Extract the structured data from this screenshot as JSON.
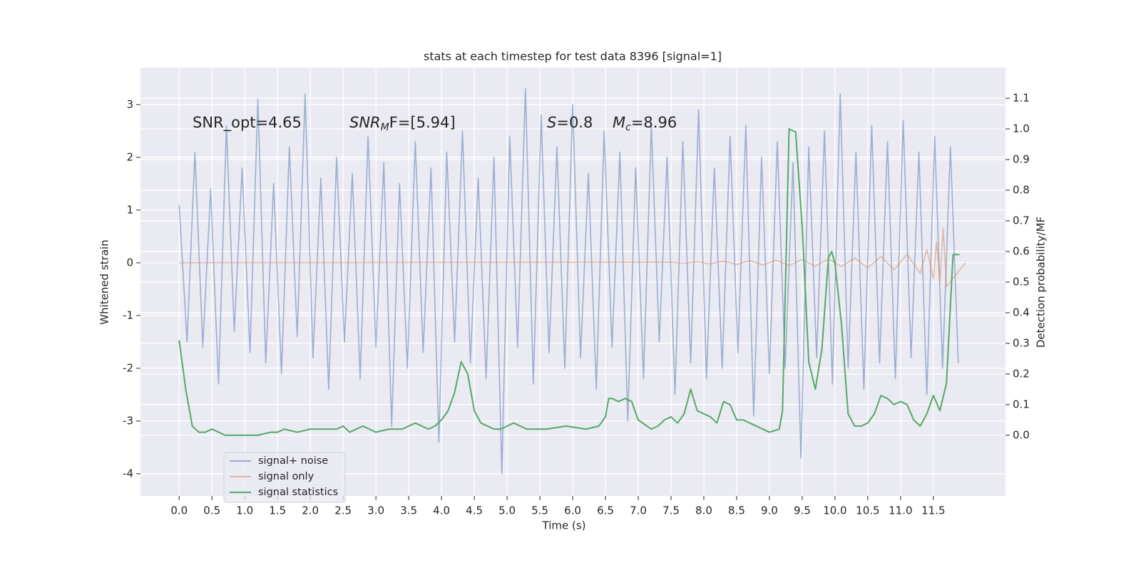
{
  "chart_data": {
    "type": "line",
    "title": "stats at each timestep for test data 8396 [signal=1]",
    "xlabel": "Time (s)",
    "ylabel": "Whitened strain",
    "y2label": "Detection probability/MF",
    "xlim": [
      -0.59,
      12.6
    ],
    "ylim": [
      -4.42,
      3.7
    ],
    "y2lim": [
      -0.198,
      1.2
    ],
    "xticks": [
      {
        "value": 0,
        "label": "0.0"
      },
      {
        "value": 0.5,
        "label": "0.5"
      },
      {
        "value": 1,
        "label": "1.0"
      },
      {
        "value": 1.5,
        "label": "1.5"
      },
      {
        "value": 2,
        "label": "2.0"
      },
      {
        "value": 2.5,
        "label": "2.5"
      },
      {
        "value": 3,
        "label": "3.0"
      },
      {
        "value": 3.5,
        "label": "3.5"
      },
      {
        "value": 4,
        "label": "4.0"
      },
      {
        "value": 4.5,
        "label": "4.5"
      },
      {
        "value": 5,
        "label": "5.0"
      },
      {
        "value": 5.5,
        "label": "5.5"
      },
      {
        "value": 6,
        "label": "6.0"
      },
      {
        "value": 6.5,
        "label": "6.5"
      },
      {
        "value": 7,
        "label": "7.0"
      },
      {
        "value": 7.5,
        "label": "7.5"
      },
      {
        "value": 8,
        "label": "8.0"
      },
      {
        "value": 8.5,
        "label": "8.5"
      },
      {
        "value": 9,
        "label": "9.0"
      },
      {
        "value": 9.5,
        "label": "9.5"
      },
      {
        "value": 10,
        "label": "10.0"
      },
      {
        "value": 10.5,
        "label": "10.5"
      },
      {
        "value": 11,
        "label": "11.0"
      },
      {
        "value": 11.5,
        "label": "11.5"
      }
    ],
    "yticks": [
      -4,
      -3,
      -2,
      -1,
      0,
      1,
      2,
      3
    ],
    "y2ticks": [
      {
        "value": 0,
        "label": "0.0"
      },
      {
        "value": 0.1,
        "label": "0.1"
      },
      {
        "value": 0.2,
        "label": "0.2"
      },
      {
        "value": 0.3,
        "label": "0.3"
      },
      {
        "value": 0.4,
        "label": "0.4"
      },
      {
        "value": 0.5,
        "label": "0.5"
      },
      {
        "value": 0.6,
        "label": "0.6"
      },
      {
        "value": 0.7,
        "label": "0.7"
      },
      {
        "value": 0.8,
        "label": "0.8"
      },
      {
        "value": 0.9,
        "label": "0.9"
      },
      {
        "value": 1,
        "label": "1.0"
      },
      {
        "value": 1.1,
        "label": "1.1"
      }
    ],
    "grid": true,
    "legend": "lower left",
    "annotations": [
      {
        "main": "SNR_opt=4.65",
        "italic": false
      },
      {
        "main": "SNR",
        "sub": "M",
        "rest": "F=[5.94]",
        "italic": true
      },
      {
        "main": "S",
        "rest": "=0.8",
        "italic": true
      },
      {
        "main": "M",
        "sub": "c",
        "rest": "=8.96",
        "italic": true
      }
    ],
    "series": [
      {
        "name": "signal+ noise",
        "color": "#4c72b0",
        "opacity": 0.5,
        "axis": "y",
        "x": [
          0,
          0.12,
          0.24,
          0.36,
          0.48,
          0.6,
          0.72,
          0.84,
          0.96,
          1.08,
          1.2,
          1.32,
          1.44,
          1.56,
          1.68,
          1.8,
          1.92,
          2.04,
          2.16,
          2.28,
          2.4,
          2.52,
          2.64,
          2.76,
          2.88,
          3.0,
          3.12,
          3.24,
          3.36,
          3.48,
          3.6,
          3.72,
          3.84,
          3.96,
          4.08,
          4.2,
          4.32,
          4.44,
          4.56,
          4.68,
          4.8,
          4.92,
          5.04,
          5.16,
          5.28,
          5.4,
          5.52,
          5.64,
          5.76,
          5.88,
          6.0,
          6.12,
          6.24,
          6.36,
          6.48,
          6.6,
          6.72,
          6.84,
          6.96,
          7.08,
          7.2,
          7.32,
          7.44,
          7.56,
          7.68,
          7.8,
          7.92,
          8.04,
          8.16,
          8.28,
          8.4,
          8.52,
          8.64,
          8.76,
          8.88,
          9.0,
          9.12,
          9.24,
          9.36,
          9.48,
          9.6,
          9.72,
          9.84,
          9.96,
          10.08,
          10.2,
          10.32,
          10.44,
          10.56,
          10.68,
          10.8,
          10.92,
          11.04,
          11.16,
          11.28,
          11.4,
          11.52,
          11.64,
          11.76,
          11.88
        ],
        "values": [
          1.1,
          -1.5,
          2.1,
          -1.6,
          1.4,
          -2.3,
          2.6,
          -1.3,
          1.8,
          -1.7,
          3.1,
          -1.9,
          1.5,
          -2.1,
          2.2,
          -1.4,
          3.2,
          -1.8,
          1.6,
          -2.4,
          2.0,
          -1.5,
          1.7,
          -2.2,
          2.4,
          -1.6,
          1.9,
          -3.1,
          1.5,
          -2.0,
          2.3,
          -1.7,
          1.8,
          -3.4,
          2.1,
          -1.5,
          2.5,
          -1.9,
          1.6,
          -2.2,
          2.0,
          -4.0,
          2.4,
          -1.6,
          3.3,
          -2.3,
          2.8,
          -1.7,
          2.2,
          -2.0,
          3.0,
          -1.8,
          1.7,
          -2.4,
          2.5,
          -1.6,
          2.1,
          -3.0,
          1.8,
          -2.2,
          2.6,
          -1.5,
          2.0,
          -2.5,
          2.3,
          -1.9,
          2.9,
          -2.2,
          1.8,
          -2.0,
          2.4,
          -1.7,
          2.6,
          -2.9,
          2.0,
          -2.1,
          2.3,
          -2.0,
          1.9,
          -3.7,
          2.2,
          -1.8,
          2.5,
          -2.3,
          3.2,
          -2.0,
          2.1,
          -2.4,
          2.6,
          -1.9,
          2.3,
          -2.2,
          2.7,
          -1.8,
          2.1,
          -2.5,
          2.4,
          -2.0,
          2.2,
          -1.9
        ]
      },
      {
        "name": "signal only",
        "color": "#dd8452",
        "opacity": 0.5,
        "axis": "y",
        "x": [
          0,
          7.5,
          7.7,
          7.9,
          8.1,
          8.3,
          8.5,
          8.7,
          8.9,
          9.1,
          9.3,
          9.5,
          9.7,
          9.9,
          10.1,
          10.3,
          10.5,
          10.7,
          10.9,
          11.1,
          11.3,
          11.4,
          11.5,
          11.55,
          11.6,
          11.65,
          11.7,
          11.99
        ],
        "values": [
          0,
          0.01,
          -0.01,
          0.02,
          -0.02,
          0.03,
          -0.03,
          0.04,
          -0.04,
          0.05,
          -0.05,
          0.06,
          -0.06,
          0.07,
          -0.07,
          0.09,
          -0.1,
          0.12,
          -0.13,
          0.16,
          -0.2,
          0.25,
          -0.3,
          0.4,
          -0.38,
          0.65,
          -0.45,
          0
        ]
      },
      {
        "name": "signal statistics",
        "color": "#55a868",
        "opacity": 1,
        "axis": "y2",
        "x": [
          0,
          0.05,
          0.1,
          0.2,
          0.3,
          0.4,
          0.5,
          0.6,
          0.7,
          0.8,
          1.0,
          1.2,
          1.4,
          1.5,
          1.6,
          1.8,
          2.0,
          2.2,
          2.4,
          2.5,
          2.6,
          2.8,
          3.0,
          3.2,
          3.4,
          3.6,
          3.8,
          3.9,
          4.0,
          4.1,
          4.2,
          4.3,
          4.4,
          4.5,
          4.6,
          4.8,
          4.9,
          5.0,
          5.1,
          5.3,
          5.6,
          5.9,
          6.2,
          6.4,
          6.5,
          6.55,
          6.6,
          6.7,
          6.8,
          6.9,
          7.0,
          7.2,
          7.3,
          7.4,
          7.5,
          7.6,
          7.7,
          7.8,
          7.9,
          8.0,
          8.1,
          8.2,
          8.3,
          8.4,
          8.5,
          8.6,
          8.7,
          9.0,
          9.15,
          9.2,
          9.3,
          9.4,
          9.5,
          9.6,
          9.7,
          9.8,
          9.9,
          9.95,
          10.0,
          10.1,
          10.2,
          10.3,
          10.4,
          10.5,
          10.6,
          10.7,
          10.8,
          10.9,
          11.0,
          11.1,
          11.2,
          11.3,
          11.4,
          11.5,
          11.6,
          11.7,
          11.8,
          11.9
        ],
        "values": [
          0.31,
          0.23,
          0.15,
          0.03,
          0.01,
          0.01,
          0.02,
          0.01,
          0.0,
          0.0,
          0.0,
          0.0,
          0.01,
          0.01,
          0.02,
          0.01,
          0.02,
          0.02,
          0.02,
          0.03,
          0.01,
          0.03,
          0.01,
          0.02,
          0.02,
          0.04,
          0.02,
          0.03,
          0.05,
          0.08,
          0.14,
          0.24,
          0.2,
          0.08,
          0.04,
          0.02,
          0.02,
          0.03,
          0.04,
          0.02,
          0.02,
          0.03,
          0.02,
          0.03,
          0.06,
          0.12,
          0.12,
          0.11,
          0.12,
          0.11,
          0.05,
          0.02,
          0.03,
          0.05,
          0.06,
          0.04,
          0.07,
          0.15,
          0.08,
          0.07,
          0.06,
          0.04,
          0.11,
          0.1,
          0.05,
          0.05,
          0.04,
          0.01,
          0.02,
          0.08,
          1.0,
          0.99,
          0.68,
          0.24,
          0.15,
          0.28,
          0.58,
          0.6,
          0.56,
          0.36,
          0.07,
          0.03,
          0.03,
          0.04,
          0.07,
          0.13,
          0.12,
          0.1,
          0.11,
          0.1,
          0.05,
          0.03,
          0.07,
          0.13,
          0.08,
          0.17,
          0.59,
          0.59
        ]
      }
    ]
  }
}
